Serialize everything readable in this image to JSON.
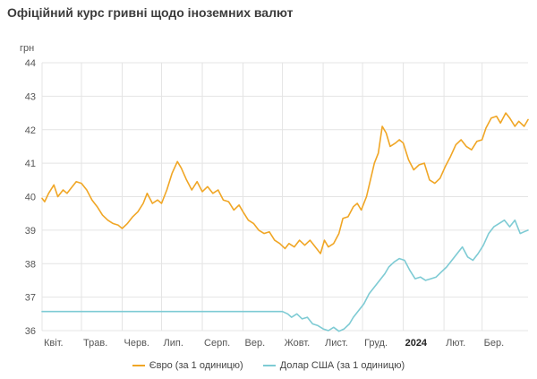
{
  "page": {
    "title": "Офіційний курс гривні щодо іноземних валют"
  },
  "colors": {
    "euro": "#f0a625",
    "usd": "#7ecbd4",
    "grid": "#e4e4e4",
    "axis_text": "#555555"
  },
  "chart_data": {
    "type": "line",
    "title": "Офіційний курс гривні щодо іноземних валют",
    "ylabel": "грн",
    "xlabel": "",
    "ylim": [
      36,
      44
    ],
    "y_ticks": [
      36,
      37,
      38,
      39,
      40,
      41,
      42,
      43,
      44
    ],
    "xlim": [
      "2023-04-01",
      "2024-04-05"
    ],
    "grid": true,
    "legend_position": "bottom",
    "x_ticks": [
      {
        "label": "Квіт.",
        "date": "2023-04-01"
      },
      {
        "label": "Трав.",
        "date": "2023-05-01"
      },
      {
        "label": "Черв.",
        "date": "2023-06-01"
      },
      {
        "label": "Лип.",
        "date": "2023-07-01"
      },
      {
        "label": "Серп.",
        "date": "2023-08-01"
      },
      {
        "label": "Вер.",
        "date": "2023-09-01"
      },
      {
        "label": "Жовт.",
        "date": "2023-10-01"
      },
      {
        "label": "Лист.",
        "date": "2023-11-01"
      },
      {
        "label": "Груд.",
        "date": "2023-12-01"
      },
      {
        "label": "2024",
        "date": "2024-01-01",
        "bold": true
      },
      {
        "label": "Лют.",
        "date": "2024-02-01"
      },
      {
        "label": "Бер.",
        "date": "2024-03-01"
      }
    ],
    "series": [
      {
        "name": "Євро (за 1 одиницю)",
        "color": "#f0a625",
        "points": [
          [
            "2023-04-01",
            39.95
          ],
          [
            "2023-04-03",
            39.85
          ],
          [
            "2023-04-06",
            40.1
          ],
          [
            "2023-04-10",
            40.35
          ],
          [
            "2023-04-13",
            40.0
          ],
          [
            "2023-04-17",
            40.2
          ],
          [
            "2023-04-20",
            40.1
          ],
          [
            "2023-04-24",
            40.3
          ],
          [
            "2023-04-27",
            40.45
          ],
          [
            "2023-05-01",
            40.4
          ],
          [
            "2023-05-05",
            40.2
          ],
          [
            "2023-05-09",
            39.9
          ],
          [
            "2023-05-13",
            39.7
          ],
          [
            "2023-05-17",
            39.45
          ],
          [
            "2023-05-21",
            39.3
          ],
          [
            "2023-05-25",
            39.2
          ],
          [
            "2023-05-29",
            39.15
          ],
          [
            "2023-06-01",
            39.05
          ],
          [
            "2023-06-05",
            39.2
          ],
          [
            "2023-06-09",
            39.4
          ],
          [
            "2023-06-13",
            39.55
          ],
          [
            "2023-06-17",
            39.8
          ],
          [
            "2023-06-20",
            40.1
          ],
          [
            "2023-06-24",
            39.8
          ],
          [
            "2023-06-28",
            39.9
          ],
          [
            "2023-07-01",
            39.8
          ],
          [
            "2023-07-05",
            40.2
          ],
          [
            "2023-07-09",
            40.7
          ],
          [
            "2023-07-13",
            41.05
          ],
          [
            "2023-07-16",
            40.85
          ],
          [
            "2023-07-20",
            40.5
          ],
          [
            "2023-07-24",
            40.2
          ],
          [
            "2023-07-28",
            40.45
          ],
          [
            "2023-08-01",
            40.15
          ],
          [
            "2023-08-05",
            40.3
          ],
          [
            "2023-08-09",
            40.1
          ],
          [
            "2023-08-13",
            40.2
          ],
          [
            "2023-08-17",
            39.9
          ],
          [
            "2023-08-21",
            39.85
          ],
          [
            "2023-08-25",
            39.6
          ],
          [
            "2023-08-29",
            39.75
          ],
          [
            "2023-09-01",
            39.55
          ],
          [
            "2023-09-05",
            39.3
          ],
          [
            "2023-09-09",
            39.2
          ],
          [
            "2023-09-13",
            39.0
          ],
          [
            "2023-09-17",
            38.9
          ],
          [
            "2023-09-21",
            38.95
          ],
          [
            "2023-09-25",
            38.7
          ],
          [
            "2023-09-29",
            38.6
          ],
          [
            "2023-10-03",
            38.45
          ],
          [
            "2023-10-06",
            38.6
          ],
          [
            "2023-10-10",
            38.5
          ],
          [
            "2023-10-14",
            38.7
          ],
          [
            "2023-10-18",
            38.55
          ],
          [
            "2023-10-22",
            38.7
          ],
          [
            "2023-10-26",
            38.5
          ],
          [
            "2023-10-30",
            38.3
          ],
          [
            "2023-11-02",
            38.7
          ],
          [
            "2023-11-05",
            38.5
          ],
          [
            "2023-11-09",
            38.6
          ],
          [
            "2023-11-13",
            38.9
          ],
          [
            "2023-11-16",
            39.35
          ],
          [
            "2023-11-20",
            39.4
          ],
          [
            "2023-11-24",
            39.7
          ],
          [
            "2023-11-27",
            39.8
          ],
          [
            "2023-11-30",
            39.6
          ],
          [
            "2023-12-04",
            40.0
          ],
          [
            "2023-12-07",
            40.5
          ],
          [
            "2023-12-10",
            41.0
          ],
          [
            "2023-12-13",
            41.3
          ],
          [
            "2023-12-16",
            42.1
          ],
          [
            "2023-12-19",
            41.9
          ],
          [
            "2023-12-22",
            41.5
          ],
          [
            "2023-12-26",
            41.6
          ],
          [
            "2023-12-29",
            41.7
          ],
          [
            "2024-01-01",
            41.6
          ],
          [
            "2024-01-05",
            41.1
          ],
          [
            "2024-01-09",
            40.8
          ],
          [
            "2024-01-13",
            40.95
          ],
          [
            "2024-01-17",
            41.0
          ],
          [
            "2024-01-21",
            40.5
          ],
          [
            "2024-01-25",
            40.4
          ],
          [
            "2024-01-29",
            40.55
          ],
          [
            "2024-02-02",
            40.9
          ],
          [
            "2024-02-06",
            41.2
          ],
          [
            "2024-02-10",
            41.55
          ],
          [
            "2024-02-14",
            41.7
          ],
          [
            "2024-02-18",
            41.5
          ],
          [
            "2024-02-22",
            41.4
          ],
          [
            "2024-02-26",
            41.65
          ],
          [
            "2024-03-01",
            41.7
          ],
          [
            "2024-03-04",
            42.05
          ],
          [
            "2024-03-08",
            42.35
          ],
          [
            "2024-03-12",
            42.4
          ],
          [
            "2024-03-15",
            42.2
          ],
          [
            "2024-03-19",
            42.5
          ],
          [
            "2024-03-22",
            42.35
          ],
          [
            "2024-03-26",
            42.1
          ],
          [
            "2024-03-29",
            42.25
          ],
          [
            "2024-04-02",
            42.1
          ],
          [
            "2024-04-05",
            42.3
          ]
        ]
      },
      {
        "name": "Долар США (за 1 одиницю)",
        "color": "#7ecbd4",
        "points": [
          [
            "2023-04-01",
            36.57
          ],
          [
            "2023-10-01",
            36.57
          ],
          [
            "2023-10-05",
            36.5
          ],
          [
            "2023-10-08",
            36.4
          ],
          [
            "2023-10-12",
            36.5
          ],
          [
            "2023-10-16",
            36.35
          ],
          [
            "2023-10-20",
            36.4
          ],
          [
            "2023-10-24",
            36.2
          ],
          [
            "2023-10-28",
            36.15
          ],
          [
            "2023-11-01",
            36.05
          ],
          [
            "2023-11-05",
            36.0
          ],
          [
            "2023-11-09",
            36.1
          ],
          [
            "2023-11-13",
            35.98
          ],
          [
            "2023-11-17",
            36.05
          ],
          [
            "2023-11-21",
            36.2
          ],
          [
            "2023-11-24",
            36.4
          ],
          [
            "2023-11-28",
            36.6
          ],
          [
            "2023-12-02",
            36.8
          ],
          [
            "2023-12-06",
            37.1
          ],
          [
            "2023-12-10",
            37.3
          ],
          [
            "2023-12-14",
            37.5
          ],
          [
            "2023-12-18",
            37.7
          ],
          [
            "2023-12-21",
            37.9
          ],
          [
            "2023-12-25",
            38.05
          ],
          [
            "2023-12-29",
            38.15
          ],
          [
            "2024-01-02",
            38.1
          ],
          [
            "2024-01-06",
            37.8
          ],
          [
            "2024-01-10",
            37.55
          ],
          [
            "2024-01-14",
            37.6
          ],
          [
            "2024-01-18",
            37.5
          ],
          [
            "2024-01-22",
            37.55
          ],
          [
            "2024-01-26",
            37.6
          ],
          [
            "2024-01-30",
            37.75
          ],
          [
            "2024-02-03",
            37.9
          ],
          [
            "2024-02-07",
            38.1
          ],
          [
            "2024-02-11",
            38.3
          ],
          [
            "2024-02-15",
            38.5
          ],
          [
            "2024-02-19",
            38.2
          ],
          [
            "2024-02-23",
            38.1
          ],
          [
            "2024-02-27",
            38.3
          ],
          [
            "2024-03-02",
            38.55
          ],
          [
            "2024-03-06",
            38.9
          ],
          [
            "2024-03-10",
            39.1
          ],
          [
            "2024-03-14",
            39.2
          ],
          [
            "2024-03-18",
            39.3
          ],
          [
            "2024-03-22",
            39.1
          ],
          [
            "2024-03-26",
            39.3
          ],
          [
            "2024-03-30",
            38.9
          ],
          [
            "2024-04-02",
            38.95
          ],
          [
            "2024-04-05",
            39.0
          ]
        ]
      }
    ]
  },
  "legend": {
    "items": [
      {
        "label": "Євро (за 1 одиницю)",
        "color": "#f0a625"
      },
      {
        "label": "Долар США (за 1 одиницю)",
        "color": "#7ecbd4"
      }
    ]
  }
}
